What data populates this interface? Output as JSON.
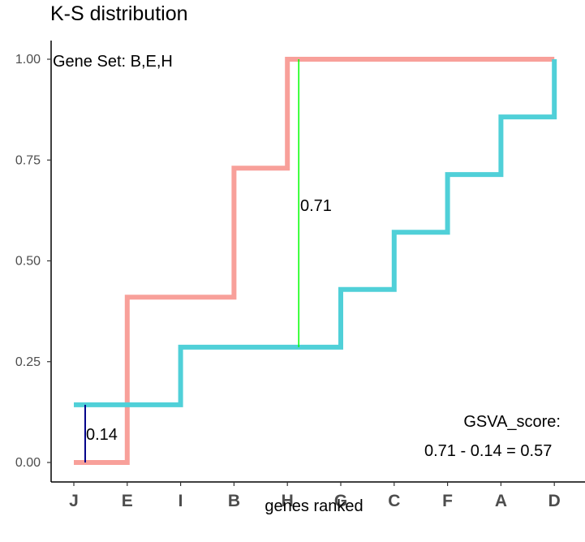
{
  "title": "K-S distribution",
  "chart_data": {
    "type": "line",
    "step": true,
    "title": "K-S distribution",
    "categories": [
      "J",
      "E",
      "I",
      "B",
      "H",
      "G",
      "C",
      "F",
      "A",
      "D"
    ],
    "xlabel": "genes ranked",
    "ylabel": "",
    "ylim": [
      0,
      1
    ],
    "yticks": [
      0.0,
      0.25,
      0.5,
      0.75,
      1.0
    ],
    "ytick_labels": [
      "0.00",
      "0.25",
      "0.50",
      "0.75",
      "1.00"
    ],
    "grid": false,
    "legend": "none",
    "series": [
      {
        "color": "#F8A09A",
        "values": [
          0.0,
          0.41,
          0.41,
          0.73,
          1.0,
          1.0,
          1.0,
          1.0,
          1.0,
          1.0
        ]
      },
      {
        "color": "#50D0D8",
        "values": [
          0.143,
          0.143,
          0.286,
          0.286,
          0.286,
          0.429,
          0.571,
          0.714,
          0.857,
          1.0
        ]
      }
    ],
    "annotations": {
      "gene_set": "Gene Set: B,E,H",
      "max_pos": {
        "label": "0.71",
        "at": "H",
        "from": 0.286,
        "to": 1.0,
        "color": "#00FF00"
      },
      "max_neg": {
        "label": "0.14",
        "at": "J",
        "from": 0.0,
        "to": 0.143,
        "color": "#00008B"
      },
      "score_line1": "GSVA_score:",
      "score_line2": "0.71 - 0.14 = 0.57"
    }
  }
}
